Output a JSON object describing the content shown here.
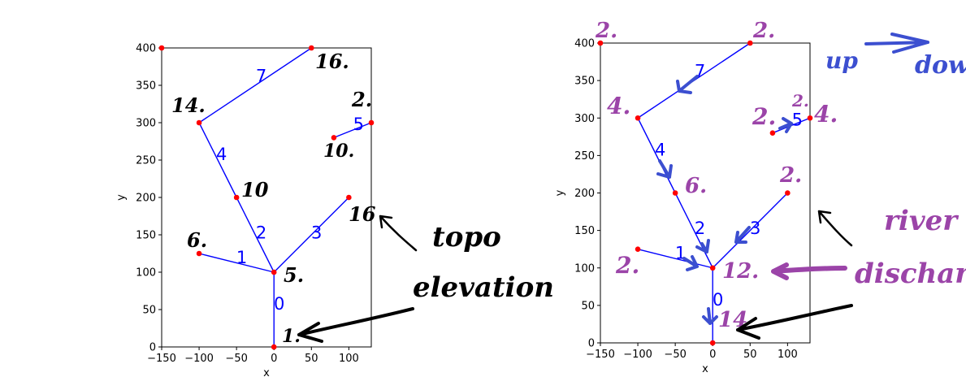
{
  "colors": {
    "network": "#0000ff",
    "node": "#ff0000",
    "handwriting_black": "#000000",
    "handwriting_purple": "#9b44a8",
    "handwriting_blue": "#3c4fd0"
  },
  "chart_data": [
    {
      "type": "line",
      "xlabel": "x",
      "ylabel": "y",
      "xlim": [
        -150,
        130
      ],
      "ylim": [
        0,
        400
      ],
      "xticks": [
        "−150",
        "−100",
        "−50",
        "0",
        "50",
        "100"
      ],
      "yticks": [
        "0",
        "50",
        "100",
        "150",
        "200",
        "250",
        "300",
        "350",
        "400"
      ],
      "segments": [
        {
          "label": "0",
          "from": [
            0,
            0
          ],
          "to": [
            0,
            100
          ]
        },
        {
          "label": "1",
          "from": [
            -100,
            125
          ],
          "to": [
            0,
            100
          ]
        },
        {
          "label": "2",
          "from": [
            -50,
            200
          ],
          "to": [
            0,
            100
          ]
        },
        {
          "label": "3",
          "from": [
            100,
            200
          ],
          "to": [
            0,
            100
          ]
        },
        {
          "label": "4",
          "from": [
            -100,
            300
          ],
          "to": [
            -50,
            200
          ]
        },
        {
          "label": "5",
          "from": [
            80,
            280
          ],
          "to": [
            130,
            300
          ]
        },
        {
          "label": "7",
          "from": [
            50,
            400
          ],
          "to": [
            -100,
            300
          ]
        }
      ],
      "nodes": [
        [
          0,
          0
        ],
        [
          0,
          100
        ],
        [
          -100,
          125
        ],
        [
          -50,
          200
        ],
        [
          100,
          200
        ],
        [
          -100,
          300
        ],
        [
          80,
          280
        ],
        [
          130,
          300
        ],
        [
          50,
          400
        ],
        [
          -150,
          400
        ]
      ],
      "annotations": [
        "1.",
        "5.",
        "6.",
        "10",
        "16",
        "14.",
        "16.",
        "2.",
        "10."
      ],
      "note": "topo elevation"
    },
    {
      "type": "line",
      "xlabel": "x",
      "ylabel": "y",
      "xlim": [
        -150,
        130
      ],
      "ylim": [
        0,
        400
      ],
      "xticks": [
        "−150",
        "−100",
        "−50",
        "0",
        "50",
        "100"
      ],
      "yticks": [
        "0",
        "50",
        "100",
        "150",
        "200",
        "250",
        "300",
        "350",
        "400"
      ],
      "segments": [
        {
          "label": "0",
          "from": [
            0,
            0
          ],
          "to": [
            0,
            100
          ]
        },
        {
          "label": "1",
          "from": [
            -100,
            125
          ],
          "to": [
            0,
            100
          ]
        },
        {
          "label": "2",
          "from": [
            -50,
            200
          ],
          "to": [
            0,
            100
          ]
        },
        {
          "label": "3",
          "from": [
            100,
            200
          ],
          "to": [
            0,
            100
          ]
        },
        {
          "label": "4",
          "from": [
            -100,
            300
          ],
          "to": [
            -50,
            200
          ]
        },
        {
          "label": "5",
          "from": [
            80,
            280
          ],
          "to": [
            130,
            300
          ]
        },
        {
          "label": "7",
          "from": [
            50,
            400
          ],
          "to": [
            -100,
            300
          ]
        }
      ],
      "nodes": [
        [
          0,
          0
        ],
        [
          0,
          100
        ],
        [
          -100,
          125
        ],
        [
          -50,
          200
        ],
        [
          100,
          200
        ],
        [
          -100,
          300
        ],
        [
          80,
          280
        ],
        [
          130,
          300
        ],
        [
          50,
          400
        ],
        [
          -150,
          400
        ]
      ],
      "annotations": [
        "14",
        "12.",
        "2.",
        "6.",
        "2.",
        "4.",
        "2.",
        "2.",
        "4.",
        "2.",
        "2."
      ],
      "note": "river discharge",
      "legend": {
        "up": "up",
        "down": "down"
      }
    }
  ]
}
